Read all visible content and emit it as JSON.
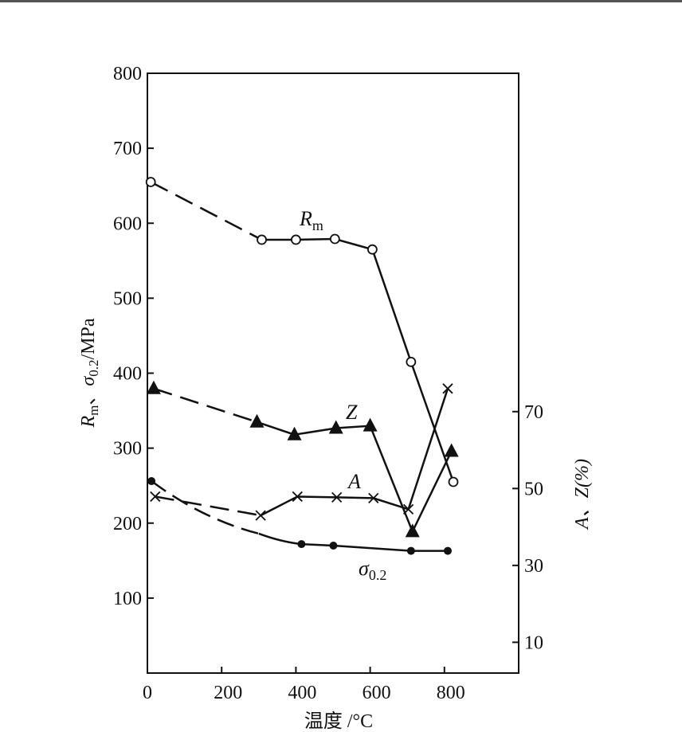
{
  "chart_data": {
    "type": "line",
    "xlabel": "温度 /°C",
    "ylabel": "Rm、σ0.2/MPa",
    "ylabel_parts": {
      "r": "R",
      "r_sub": "m",
      "sep": "、",
      "s": "σ",
      "s_sub": "0.2",
      "unit": "/MPa"
    },
    "y2label": "A、Z(%)",
    "xlim": [
      0,
      1000
    ],
    "ylim": [
      0,
      800
    ],
    "y2lim": [
      2,
      158
    ],
    "xticks": [
      0,
      200,
      400,
      600,
      800
    ],
    "yticks": [
      100,
      200,
      300,
      400,
      500,
      600,
      700,
      800
    ],
    "y2ticks": [
      10,
      30,
      50,
      70
    ],
    "grid": false,
    "series": [
      {
        "name": "Rm",
        "label_main": "R",
        "label_sub": "m",
        "axis": "left",
        "marker": "open-circle",
        "x": [
          9,
          308,
          400,
          505,
          606,
          710,
          824
        ],
        "y": [
          655,
          578,
          578,
          579,
          565,
          415,
          255
        ],
        "dashed_until_index": 1
      },
      {
        "name": "Z",
        "label_main": "Z",
        "label_sub": "",
        "axis": "right",
        "marker": "filled-triangle",
        "x": [
          17,
          295,
          396,
          508,
          600,
          714,
          819
        ],
        "y": [
          76,
          67.3,
          64,
          65.7,
          66.3,
          38.8,
          59.7
        ],
        "dashed_until_index": 1
      },
      {
        "name": "A",
        "label_main": "A",
        "label_sub": "",
        "axis": "right",
        "marker": "x",
        "x": [
          21,
          305,
          404,
          510,
          609,
          703,
          809
        ],
        "y": [
          47.9,
          43,
          47.9,
          47.7,
          47.5,
          44.6,
          76
        ],
        "dashed_until_index": 1
      },
      {
        "name": "σ0.2",
        "label_main": "σ",
        "label_sub": "0.2",
        "axis": "left",
        "marker": "filled-circle",
        "x": [
          11,
          415,
          501,
          710,
          809
        ],
        "y": [
          256,
          172,
          170,
          163,
          163
        ],
        "dashed_until_index": 1
      }
    ]
  }
}
